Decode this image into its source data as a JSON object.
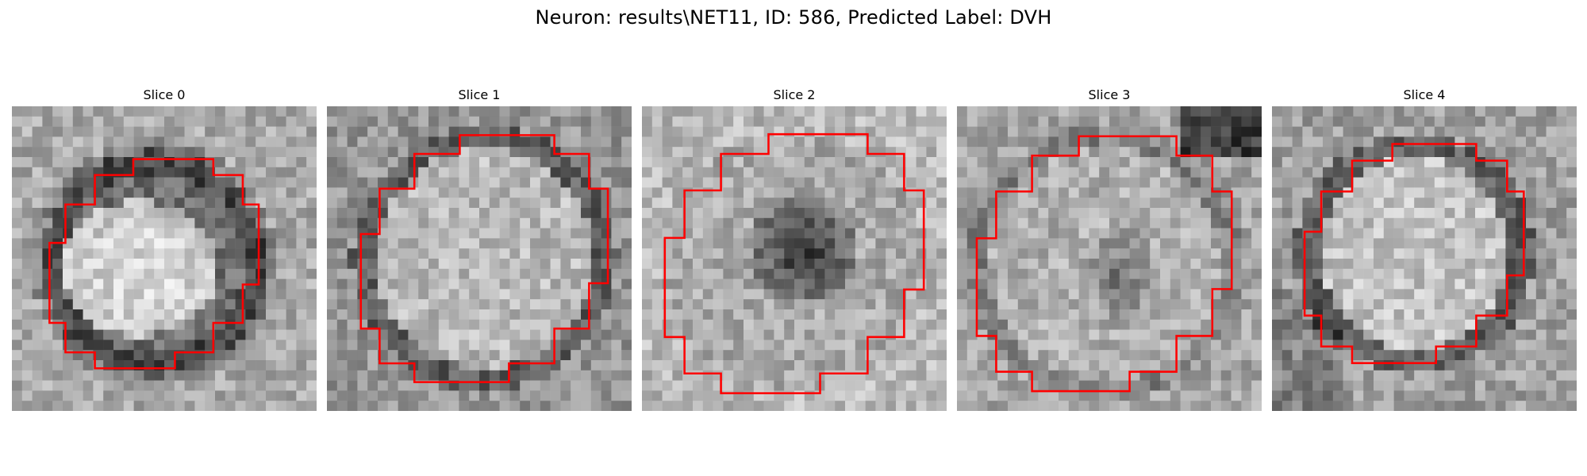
{
  "figure": {
    "title": "Neuron: results\\NET11, ID: 586, Predicted Label: DVH"
  },
  "panels": [
    {
      "title": "Slice 0",
      "seed": 11,
      "pattern": "bright-blob",
      "contour_color": "#ff0000"
    },
    {
      "title": "Slice 1",
      "seed": 23,
      "pattern": "textured-disc",
      "contour_color": "#ff0000"
    },
    {
      "title": "Slice 2",
      "seed": 37,
      "pattern": "dark-center",
      "contour_color": "#ff0000"
    },
    {
      "title": "Slice 3",
      "seed": 51,
      "pattern": "mottled-disc",
      "contour_color": "#ff0000"
    },
    {
      "title": "Slice 4",
      "seed": 67,
      "pattern": "bright-disc",
      "contour_color": "#ff0000"
    }
  ]
}
